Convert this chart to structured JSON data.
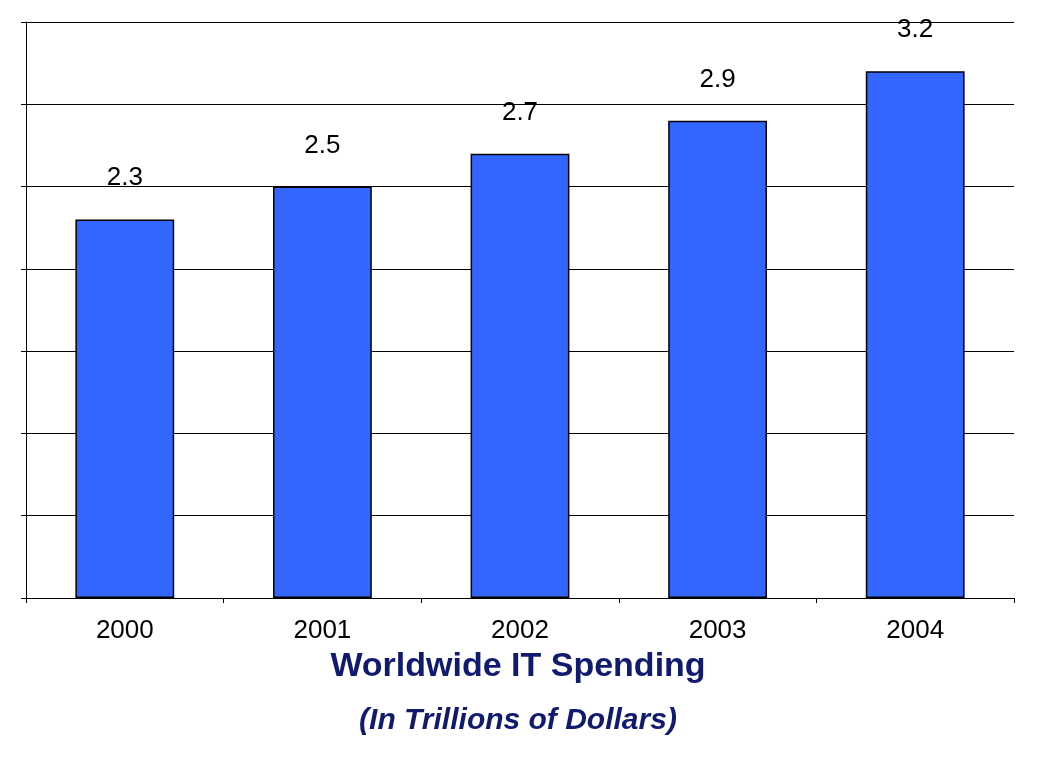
{
  "chart_data": {
    "type": "bar",
    "title": "Worldwide IT Spending",
    "subtitle": "(In Trillions of Dollars)",
    "categories": [
      "2000",
      "2001",
      "2002",
      "2003",
      "2004"
    ],
    "values": [
      2.3,
      2.5,
      2.7,
      2.9,
      3.2
    ],
    "color": "#3366ff",
    "ylim": [
      0,
      3.5
    ],
    "yticks": [
      {
        "value": 0,
        "label": null
      },
      {
        "value": 0.5,
        "label": null
      },
      {
        "value": 1,
        "label": null
      },
      {
        "value": 1.5,
        "label": null
      },
      {
        "value": 2,
        "label": null
      },
      {
        "value": 2.5,
        "label": null
      },
      {
        "value": 3,
        "label": null
      },
      {
        "value": 3.5,
        "label": null
      }
    ],
    "tick_labels": "x",
    "grid": "y",
    "data_labels": true
  }
}
